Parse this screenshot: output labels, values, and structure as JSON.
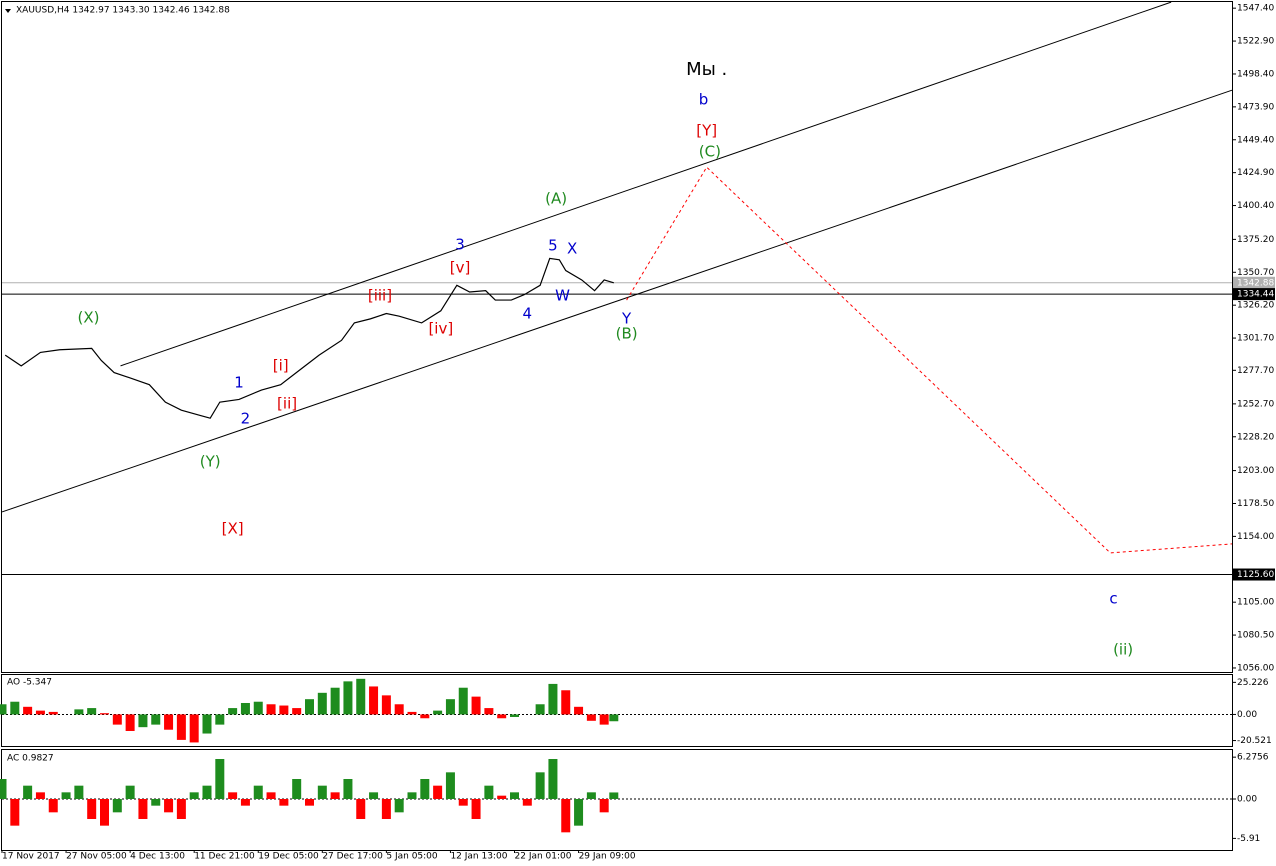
{
  "chart_data": [
    {
      "type": "line",
      "title": "XAUUSD,H4  1342.97 1343.30 1342.46 1342.88",
      "color": "#000000",
      "x": [
        1,
        6,
        12,
        18,
        28,
        31,
        35,
        40,
        46,
        51,
        56,
        62,
        65,
        68,
        74,
        81,
        87,
        93,
        99,
        106,
        110,
        115,
        120,
        124,
        131,
        137,
        142,
        146,
        151,
        154,
        159,
        163,
        168,
        171,
        174,
        176,
        181,
        185,
        188,
        191
      ],
      "values": [
        1289,
        1281,
        1291,
        1293,
        1294,
        1285,
        1276,
        1272,
        1267,
        1254,
        1248,
        1244,
        1242,
        1254,
        1256,
        1263,
        1267,
        1278,
        1289,
        1300,
        1313,
        1316,
        1320,
        1318,
        1313,
        1322,
        1341,
        1336,
        1337,
        1330,
        1330,
        1334,
        1341,
        1361,
        1360,
        1352,
        1345,
        1337,
        1345,
        1342.88
      ],
      "xlim": [
        0,
        384
      ],
      "ylim": [
        1053,
        1552
      ],
      "yticks": [
        {
          "value": 1547.4,
          "label": "1547.40"
        },
        {
          "value": 1522.9,
          "label": "1522.90"
        },
        {
          "value": 1498.4,
          "label": "1498.40"
        },
        {
          "value": 1473.9,
          "label": "1473.90"
        },
        {
          "value": 1449.4,
          "label": "1449.40"
        },
        {
          "value": 1424.9,
          "label": "1424.90"
        },
        {
          "value": 1400.4,
          "label": "1400.40"
        },
        {
          "value": 1375.2,
          "label": "1375.20"
        },
        {
          "value": 1350.7,
          "label": "1350.70"
        },
        {
          "value": 1326.2,
          "label": "1326.20"
        },
        {
          "value": 1301.7,
          "label": "1301.70"
        },
        {
          "value": 1277.7,
          "label": "1277.70"
        },
        {
          "value": 1252.7,
          "label": "1252.70"
        },
        {
          "value": 1228.2,
          "label": "1228.20"
        },
        {
          "value": 1203.0,
          "label": "1203.00"
        },
        {
          "value": 1178.5,
          "label": "1178.50"
        },
        {
          "value": 1154.0,
          "label": "1154.00"
        },
        {
          "value": 1105.0,
          "label": "1105.00"
        },
        {
          "value": 1080.5,
          "label": "1080.50"
        },
        {
          "value": 1056.0,
          "label": "1056.00"
        }
      ],
      "price_lines": [
        {
          "value": 1342.88,
          "label": "1342.88",
          "color": "#b0b0b0"
        },
        {
          "value": 1334.44,
          "label": "1334.44",
          "color": "#000000"
        },
        {
          "value": 1125.6,
          "label": "1125.60",
          "color": "#000000"
        }
      ],
      "channels": [
        {
          "x": [
            37,
            365
          ],
          "y": [
            1281,
            1551.9
          ],
          "color": "#000000"
        },
        {
          "x": [
            0,
            384
          ],
          "y": [
            1172.2,
            1486.3
          ],
          "color": "#000000"
        }
      ],
      "forecast": {
        "x": [
          195,
          220,
          346,
          384
        ],
        "y": [
          1330,
          1429,
          1141.7,
          1148.4
        ],
        "color": "#ff0000"
      },
      "annotations": [
        {
          "text": "Мы .",
          "color": "#000000",
          "x": 220,
          "y": 1501.2
        },
        {
          "text": "b",
          "color": "#0000cc",
          "x": 219,
          "y": 1478.9
        },
        {
          "text": "[Y]",
          "color": "#dd0000",
          "x": 220,
          "y": 1455.8
        },
        {
          "text": "(C)",
          "color": "#208a20",
          "x": 221,
          "y": 1440.2
        },
        {
          "text": "(A)",
          "color": "#208a20",
          "x": 173,
          "y": 1405.2
        },
        {
          "text": "3",
          "color": "#0000cc",
          "x": 143,
          "y": 1371
        },
        {
          "text": "5",
          "color": "#0000cc",
          "x": 172,
          "y": 1370.2
        },
        {
          "text": "X",
          "color": "#0000cc",
          "x": 178,
          "y": 1368
        },
        {
          "text": "[v]",
          "color": "#dd0000",
          "x": 143,
          "y": 1353.8
        },
        {
          "text": "[iii]",
          "color": "#dd0000",
          "x": 118,
          "y": 1333
        },
        {
          "text": "W",
          "color": "#0000cc",
          "x": 175,
          "y": 1333
        },
        {
          "text": "4",
          "color": "#0000cc",
          "x": 164,
          "y": 1319.6
        },
        {
          "text": "Y",
          "color": "#0000cc",
          "x": 195,
          "y": 1315.9
        },
        {
          "text": "[iv]",
          "color": "#dd0000",
          "x": 137,
          "y": 1308.4
        },
        {
          "text": "(B)",
          "color": "#208a20",
          "x": 195,
          "y": 1304.7
        },
        {
          "text": "(X)",
          "color": "#208a20",
          "x": 27,
          "y": 1316.6
        },
        {
          "text": "[i]",
          "color": "#dd0000",
          "x": 87,
          "y": 1280.9
        },
        {
          "text": "1",
          "color": "#0000cc",
          "x": 74,
          "y": 1268.2
        },
        {
          "text": "[ii]",
          "color": "#dd0000",
          "x": 89,
          "y": 1252.6
        },
        {
          "text": "2",
          "color": "#0000cc",
          "x": 76,
          "y": 1241.4
        },
        {
          "text": "(Y)",
          "color": "#208a20",
          "x": 65,
          "y": 1209.4
        },
        {
          "text": "[X]",
          "color": "#dd0000",
          "x": 72,
          "y": 1159.5
        },
        {
          "text": "c",
          "color": "#0000cc",
          "x": 347,
          "y": 1107.4
        },
        {
          "text": "(ii)",
          "color": "#208a20",
          "x": 350,
          "y": 1069.4
        }
      ]
    },
    {
      "type": "bar",
      "title": "AO -5.347",
      "up_color": "#1e8c1e",
      "down_color": "#ff0000",
      "x": [
        0,
        4,
        8,
        12,
        16,
        20,
        24,
        28,
        32,
        36,
        40,
        44,
        48,
        52,
        56,
        60,
        64,
        68,
        72,
        76,
        80,
        84,
        88,
        92,
        96,
        100,
        104,
        108,
        112,
        116,
        120,
        124,
        128,
        132,
        136,
        140,
        144,
        148,
        152,
        156,
        160,
        164,
        168,
        172,
        176,
        180,
        184,
        188,
        191
      ],
      "values": [
        8,
        10,
        6,
        3,
        2,
        0,
        4,
        5,
        1,
        -8,
        -13,
        -10,
        -8,
        -12,
        -20,
        -22,
        -15,
        -8,
        5,
        9,
        10,
        8,
        7,
        5,
        12,
        17,
        21,
        26,
        28,
        22,
        15,
        8,
        2,
        -3,
        3,
        12,
        21,
        14,
        5,
        -3,
        -2,
        0,
        8,
        24,
        19,
        6,
        -5,
        -8,
        -5.347
      ],
      "xlim": [
        0,
        384
      ],
      "ylim": [
        -24.8,
        31
      ],
      "yticks": [
        25.226,
        {
          "value": 0,
          "label": "0.00"
        },
        -20.521
      ]
    },
    {
      "type": "bar",
      "title": "AC 0.9827",
      "up_color": "#1e8c1e",
      "down_color": "#ff0000",
      "x": [
        0,
        4,
        8,
        12,
        16,
        20,
        24,
        28,
        32,
        36,
        40,
        44,
        48,
        52,
        56,
        60,
        64,
        68,
        72,
        76,
        80,
        84,
        88,
        92,
        96,
        100,
        104,
        108,
        112,
        116,
        120,
        124,
        128,
        132,
        136,
        140,
        144,
        148,
        152,
        156,
        160,
        164,
        168,
        172,
        176,
        180,
        184,
        188,
        191
      ],
      "values": [
        3,
        -4,
        2,
        1,
        -2,
        1,
        2,
        -3,
        -4,
        -2,
        2,
        -3,
        -1,
        -2,
        -3,
        1,
        2,
        6,
        1,
        -1,
        2,
        1,
        -1,
        3,
        -1,
        2,
        1,
        3,
        -3,
        1,
        -3,
        -2,
        1,
        3,
        2,
        4,
        -1,
        -3,
        2,
        0.5,
        1,
        -1,
        4,
        6,
        -5,
        -4,
        1,
        -2,
        0.9827
      ],
      "xlim": [
        0,
        384
      ],
      "ylim": [
        -7.65,
        7.35
      ],
      "yticks": [
        6.2756,
        {
          "value": 0,
          "label": "0.00"
        },
        -5.91
      ],
      "xticks": [
        {
          "value": 0,
          "label": "17 Nov 2017"
        },
        {
          "value": 20,
          "label": "27 Nov 05:00"
        },
        {
          "value": 40,
          "label": "4 Dec 13:00"
        },
        {
          "value": 60,
          "label": "11 Dec 21:00"
        },
        {
          "value": 80,
          "label": "19 Dec 05:00"
        },
        {
          "value": 100,
          "label": "27 Dec 17:00"
        },
        {
          "value": 120,
          "label": "5 Jan 05:00"
        },
        {
          "value": 140,
          "label": "12 Jan 13:00"
        },
        {
          "value": 160,
          "label": "22 Jan 01:00"
        },
        {
          "value": 180,
          "label": "29 Jan 09:00"
        }
      ]
    }
  ]
}
